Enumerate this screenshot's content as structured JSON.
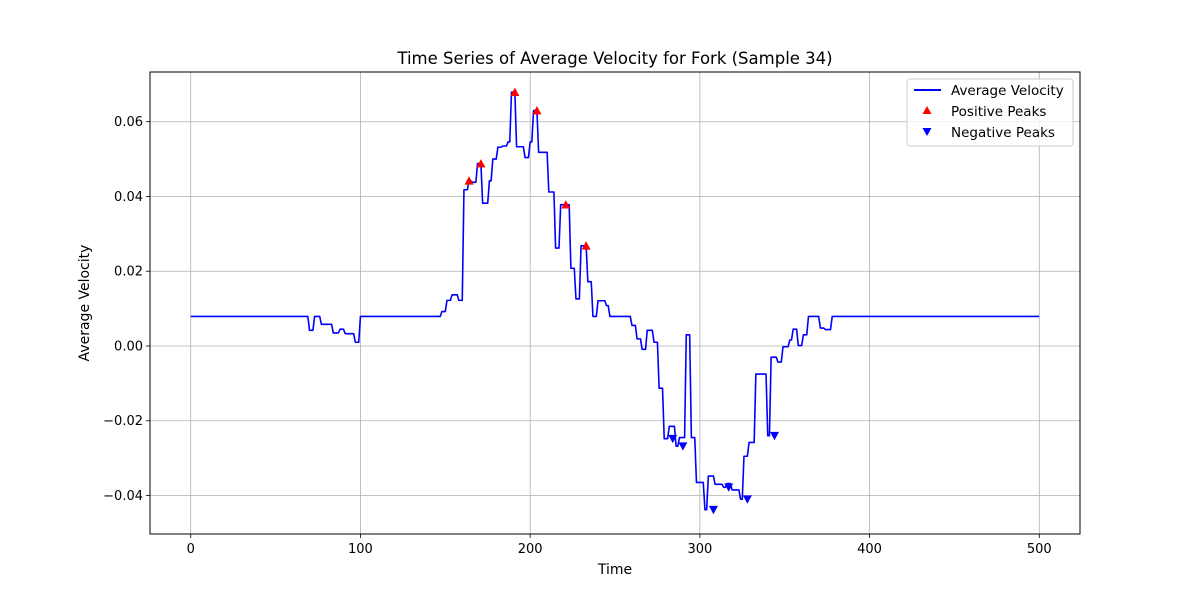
{
  "chart_data": {
    "type": "line",
    "title": "Time Series of Average Velocity for Fork (Sample 34)",
    "xlabel": "Time",
    "ylabel": "Average Velocity",
    "xlim": [
      -24,
      524
    ],
    "ylim": [
      -0.0503,
      0.0733
    ],
    "xticks": [
      0,
      100,
      200,
      300,
      400,
      500
    ],
    "xtick_labels": [
      "0",
      "100",
      "200",
      "300",
      "400",
      "500"
    ],
    "yticks": [
      -0.04,
      -0.02,
      0.0,
      0.02,
      0.04,
      0.06
    ],
    "ytick_labels": [
      "−0.04",
      "−0.02",
      "0.00",
      "0.02",
      "0.04",
      "0.06"
    ],
    "grid": true,
    "legend_position": "top-right",
    "colors": {
      "line": "#0000ff",
      "positive_peaks": "#ff0000",
      "negative_peaks": "#0000ff"
    },
    "series": [
      {
        "name": "Average Velocity",
        "kind": "line",
        "points": [
          [
            0,
            0.0079
          ],
          [
            69,
            0.0079
          ],
          [
            70,
            0.0042
          ],
          [
            72,
            0.0042
          ],
          [
            73,
            0.0079
          ],
          [
            76,
            0.0079
          ],
          [
            77,
            0.0058
          ],
          [
            83,
            0.0058
          ],
          [
            84,
            0.0035
          ],
          [
            87,
            0.0035
          ],
          [
            88,
            0.0045
          ],
          [
            90,
            0.0045
          ],
          [
            91,
            0.0033
          ],
          [
            96,
            0.0033
          ],
          [
            97,
            0.001
          ],
          [
            99,
            0.001
          ],
          [
            100,
            0.0079
          ],
          [
            147,
            0.0079
          ],
          [
            148,
            0.0092
          ],
          [
            150,
            0.0092
          ],
          [
            151,
            0.0122
          ],
          [
            153,
            0.0122
          ],
          [
            154,
            0.0137
          ],
          [
            157,
            0.0137
          ],
          [
            158,
            0.0122
          ],
          [
            160,
            0.0122
          ],
          [
            161,
            0.0418
          ],
          [
            163,
            0.0418
          ],
          [
            164,
            0.0442
          ],
          [
            165,
            0.0442
          ],
          [
            166,
            0.0438
          ],
          [
            168,
            0.0438
          ],
          [
            169,
            0.0488
          ],
          [
            171,
            0.0488
          ],
          [
            172,
            0.0382
          ],
          [
            175,
            0.0382
          ],
          [
            176,
            0.0442
          ],
          [
            177,
            0.0442
          ],
          [
            178,
            0.05
          ],
          [
            180,
            0.05
          ],
          [
            181,
            0.0532
          ],
          [
            183,
            0.0532
          ],
          [
            184,
            0.0535
          ],
          [
            186,
            0.0535
          ],
          [
            187,
            0.0546
          ],
          [
            188,
            0.0546
          ],
          [
            189,
            0.0679
          ],
          [
            191,
            0.0679
          ],
          [
            192,
            0.0533
          ],
          [
            196,
            0.0533
          ],
          [
            197,
            0.0504
          ],
          [
            199,
            0.0504
          ],
          [
            200,
            0.0546
          ],
          [
            201,
            0.0546
          ],
          [
            202,
            0.063
          ],
          [
            204,
            0.063
          ],
          [
            205,
            0.0518
          ],
          [
            210,
            0.0518
          ],
          [
            211,
            0.0412
          ],
          [
            214,
            0.0412
          ],
          [
            215,
            0.0262
          ],
          [
            217,
            0.0262
          ],
          [
            218,
            0.0378
          ],
          [
            223,
            0.0378
          ],
          [
            224,
            0.0208
          ],
          [
            226,
            0.0208
          ],
          [
            227,
            0.0126
          ],
          [
            229,
            0.0126
          ],
          [
            230,
            0.0268
          ],
          [
            233,
            0.0268
          ],
          [
            234,
            0.0172
          ],
          [
            236,
            0.0172
          ],
          [
            237,
            0.0079
          ],
          [
            239,
            0.0079
          ],
          [
            240,
            0.0121
          ],
          [
            244,
            0.0121
          ],
          [
            245,
            0.0108
          ],
          [
            246,
            0.0108
          ],
          [
            247,
            0.0079
          ],
          [
            259,
            0.0079
          ],
          [
            260,
            0.0055
          ],
          [
            262,
            0.0055
          ],
          [
            263,
            0.0019
          ],
          [
            265,
            0.0019
          ],
          [
            266,
            -0.0009
          ],
          [
            268,
            -0.0009
          ],
          [
            269,
            0.0042
          ],
          [
            272,
            0.0042
          ],
          [
            273,
            0.001
          ],
          [
            275,
            0.001
          ],
          [
            276,
            -0.0113
          ],
          [
            278,
            -0.0113
          ],
          [
            279,
            -0.0248
          ],
          [
            281,
            -0.0248
          ],
          [
            282,
            -0.0215
          ],
          [
            285,
            -0.0215
          ],
          [
            286,
            -0.0268
          ],
          [
            287,
            -0.0268
          ],
          [
            288,
            -0.0245
          ],
          [
            291,
            -0.0245
          ],
          [
            292,
            0.003
          ],
          [
            294,
            0.003
          ],
          [
            295,
            -0.0245
          ],
          [
            297,
            -0.0245
          ],
          [
            298,
            -0.0365
          ],
          [
            302,
            -0.0365
          ],
          [
            303,
            -0.0438
          ],
          [
            304,
            -0.0438
          ],
          [
            305,
            -0.0348
          ],
          [
            308,
            -0.0348
          ],
          [
            309,
            -0.037
          ],
          [
            313,
            -0.037
          ],
          [
            314,
            -0.0378
          ],
          [
            315,
            -0.0378
          ],
          [
            316,
            -0.0368
          ],
          [
            318,
            -0.0368
          ],
          [
            319,
            -0.0385
          ],
          [
            323,
            -0.0385
          ],
          [
            324,
            -0.041
          ],
          [
            325,
            -0.041
          ],
          [
            326,
            -0.0295
          ],
          [
            328,
            -0.0295
          ],
          [
            329,
            -0.0258
          ],
          [
            332,
            -0.0258
          ],
          [
            333,
            -0.0075
          ],
          [
            339,
            -0.0075
          ],
          [
            340,
            -0.024
          ],
          [
            341,
            -0.024
          ],
          [
            342,
            -0.003
          ],
          [
            345,
            -0.003
          ],
          [
            346,
            -0.0043
          ],
          [
            348,
            -0.0043
          ],
          [
            349,
            -0.0002
          ],
          [
            352,
            -0.0002
          ],
          [
            353,
            0.0016
          ],
          [
            354,
            0.0016
          ],
          [
            355,
            0.0045
          ],
          [
            357,
            0.0045
          ],
          [
            358,
            0.0001
          ],
          [
            360,
            0.0001
          ],
          [
            361,
            0.003
          ],
          [
            363,
            0.003
          ],
          [
            364,
            0.0079
          ],
          [
            370,
            0.0079
          ],
          [
            371,
            0.0048
          ],
          [
            373,
            0.0048
          ],
          [
            374,
            0.0044
          ],
          [
            377,
            0.0044
          ],
          [
            378,
            0.0079
          ],
          [
            500,
            0.0079
          ]
        ]
      },
      {
        "name": "Positive Peaks",
        "kind": "scatter",
        "marker": "triangle-up",
        "points": [
          [
            164,
            0.0442
          ],
          [
            171,
            0.0488
          ],
          [
            191,
            0.0679
          ],
          [
            204,
            0.063
          ],
          [
            221,
            0.0378
          ],
          [
            233,
            0.0268
          ]
        ]
      },
      {
        "name": "Negative Peaks",
        "kind": "scatter",
        "marker": "triangle-down",
        "points": [
          [
            284,
            -0.0248
          ],
          [
            290,
            -0.0268
          ],
          [
            308,
            -0.0438
          ],
          [
            317,
            -0.0378
          ],
          [
            328,
            -0.041
          ],
          [
            344,
            -0.024
          ]
        ]
      }
    ]
  }
}
